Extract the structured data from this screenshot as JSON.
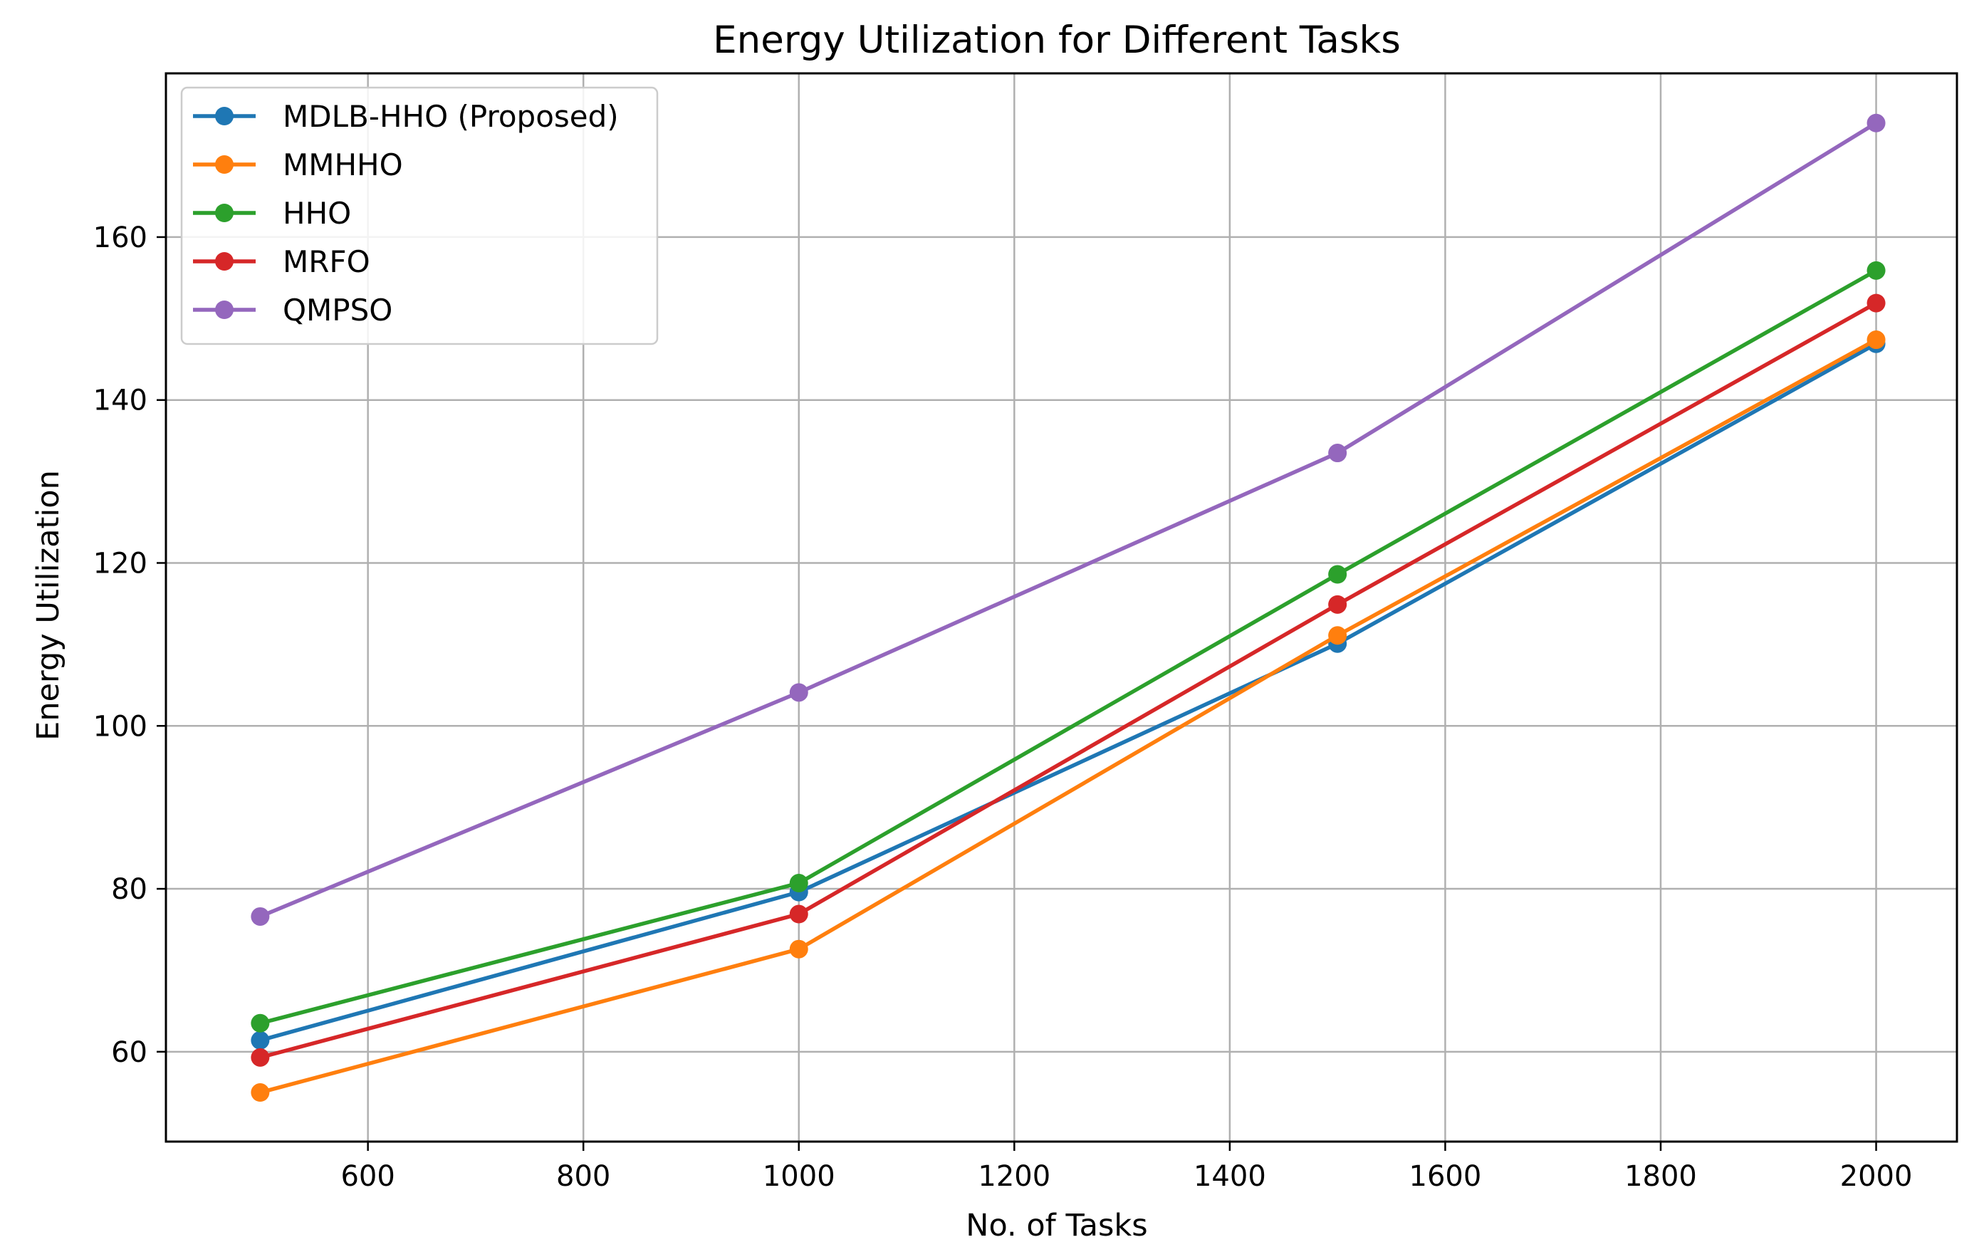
{
  "chart_data": {
    "type": "line",
    "title": "Energy Utilization for Different Tasks",
    "xlabel": "No. of Tasks",
    "ylabel": "Energy Utilization",
    "x": [
      500,
      1000,
      1500,
      2000
    ],
    "xlim": [
      412.5,
      2075
    ],
    "ylim": [
      48.97,
      180.1
    ],
    "xticks": [
      600,
      800,
      1000,
      1200,
      1400,
      1600,
      1800,
      2000
    ],
    "yticks": [
      60,
      80,
      100,
      120,
      140,
      160
    ],
    "grid": true,
    "legend_position": "top-left",
    "series": [
      {
        "name": "MDLB-HHO (Proposed)",
        "color": "#1f77b4",
        "values": [
          61.4,
          79.6,
          110.1,
          146.9
        ]
      },
      {
        "name": "MMHHO",
        "color": "#ff7f0e",
        "values": [
          55.0,
          72.6,
          111.1,
          147.4
        ]
      },
      {
        "name": "HHO",
        "color": "#2ca02c",
        "values": [
          63.5,
          80.7,
          118.6,
          155.9
        ]
      },
      {
        "name": "MRFO",
        "color": "#d62728",
        "values": [
          59.3,
          76.9,
          114.9,
          151.9
        ]
      },
      {
        "name": "QMPSO",
        "color": "#9467bd",
        "values": [
          76.6,
          104.1,
          133.5,
          174.0
        ]
      }
    ]
  }
}
